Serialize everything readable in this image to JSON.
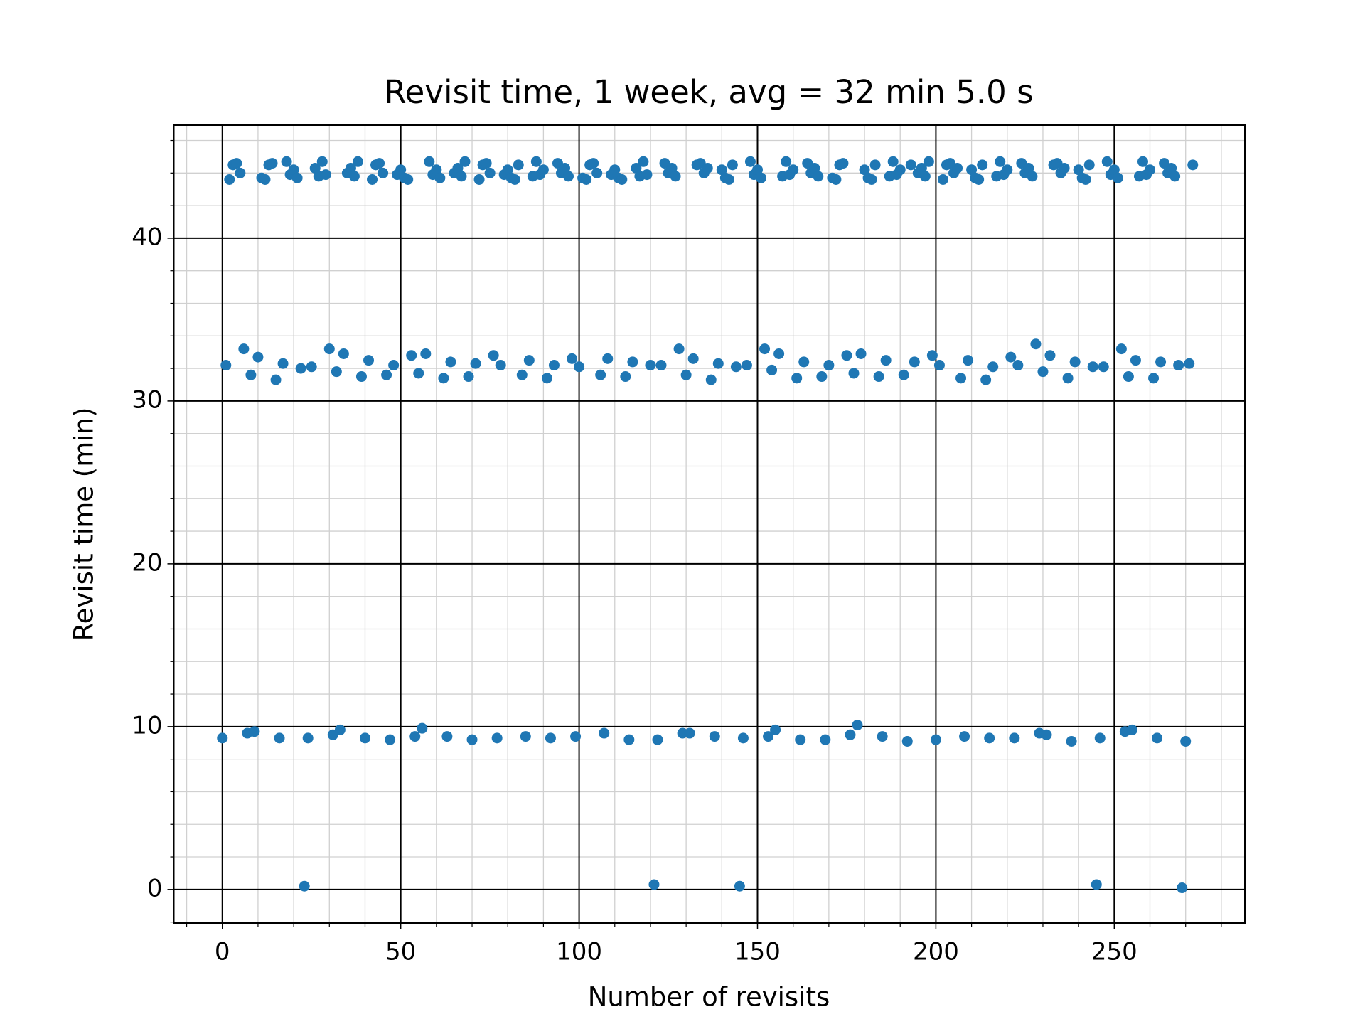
{
  "chart_data": {
    "type": "scatter",
    "title": "Revisit time, 1 week, avg = 32 min 5.0 s",
    "x_label": "Number of revisits",
    "y_label": "Revisit time (min)",
    "color": "#1f77b4",
    "grid": true,
    "xlim": [
      -13.6,
      286.6
    ],
    "ylim": [
      -2.06,
      46.94
    ],
    "xticks": [
      0,
      50,
      100,
      150,
      200,
      250
    ],
    "yticks": [
      0,
      10,
      20,
      30,
      40
    ],
    "xminorticks": [
      -10,
      10,
      20,
      30,
      40,
      60,
      70,
      80,
      90,
      110,
      120,
      130,
      140,
      160,
      170,
      180,
      190,
      210,
      220,
      230,
      240,
      260,
      270,
      280
    ],
    "yminorticks": [
      -2,
      2,
      4,
      6,
      8,
      12,
      14,
      16,
      18,
      22,
      24,
      26,
      28,
      32,
      34,
      36,
      38,
      42,
      44,
      46
    ],
    "x": [
      0,
      1,
      2,
      3,
      4,
      5,
      6,
      7,
      8,
      9,
      10,
      11,
      12,
      13,
      14,
      15,
      16,
      17,
      18,
      19,
      20,
      21,
      22,
      23,
      24,
      25,
      26,
      27,
      28,
      29,
      30,
      31,
      32,
      33,
      34,
      35,
      36,
      37,
      38,
      39,
      40,
      41,
      42,
      43,
      44,
      45,
      46,
      47,
      48,
      49,
      50,
      51,
      52,
      53,
      54,
      55,
      56,
      57,
      58,
      59,
      60,
      61,
      62,
      63,
      64,
      65,
      66,
      67,
      68,
      69,
      70,
      71,
      72,
      73,
      74,
      75,
      76,
      77,
      78,
      79,
      80,
      81,
      82,
      83,
      84,
      85,
      86,
      87,
      88,
      89,
      90,
      91,
      92,
      93,
      94,
      95,
      96,
      97,
      98,
      99,
      100,
      101,
      102,
      103,
      104,
      105,
      106,
      107,
      108,
      109,
      110,
      111,
      112,
      113,
      114,
      115,
      116,
      117,
      118,
      119,
      120,
      121,
      122,
      123,
      124,
      125,
      126,
      127,
      128,
      129,
      130,
      131,
      132,
      133,
      134,
      135,
      136,
      137,
      138,
      139,
      140,
      141,
      142,
      143,
      144,
      145,
      146,
      147,
      148,
      149,
      150,
      151,
      152,
      153,
      154,
      155,
      156,
      157,
      158,
      159,
      160,
      161,
      162,
      163,
      164,
      165,
      166,
      167,
      168,
      169,
      170,
      171,
      172,
      173,
      174,
      175,
      176,
      177,
      178,
      179,
      180,
      181,
      182,
      183,
      184,
      185,
      186,
      187,
      188,
      189,
      190,
      191,
      192,
      193,
      194,
      195,
      196,
      197,
      198,
      199,
      200,
      201,
      202,
      203,
      204,
      205,
      206,
      207,
      208,
      209,
      210,
      211,
      212,
      213,
      214,
      215,
      216,
      217,
      218,
      219,
      220,
      221,
      222,
      223,
      224,
      225,
      226,
      227,
      228,
      229,
      230,
      231,
      232,
      233,
      234,
      235,
      236,
      237,
      238,
      239,
      240,
      241,
      242,
      243,
      244,
      245,
      246,
      247,
      248,
      249,
      250,
      251,
      252,
      253,
      254,
      255,
      256,
      257,
      258,
      259,
      260,
      261,
      262,
      263,
      264,
      265,
      266,
      267,
      268,
      269,
      270,
      271,
      272
    ],
    "y": [
      9.3,
      32.2,
      43.6,
      44.5,
      44.6,
      44.0,
      33.2,
      9.6,
      31.6,
      9.7,
      32.7,
      43.7,
      43.6,
      44.5,
      44.6,
      31.3,
      9.3,
      32.3,
      44.7,
      43.9,
      44.2,
      43.7,
      32.0,
      0.2,
      9.3,
      32.1,
      44.3,
      43.8,
      44.7,
      43.9,
      33.2,
      9.5,
      31.8,
      9.8,
      32.9,
      44.0,
      44.3,
      43.8,
      44.7,
      31.5,
      9.3,
      32.5,
      43.6,
      44.5,
      44.6,
      44.0,
      31.6,
      9.2,
      32.2,
      43.9,
      44.2,
      43.7,
      43.6,
      32.8,
      9.4,
      31.7,
      9.9,
      32.9,
      44.7,
      43.9,
      44.2,
      43.7,
      31.4,
      9.4,
      32.4,
      44.0,
      44.3,
      43.8,
      44.7,
      31.5,
      9.2,
      32.3,
      43.6,
      44.5,
      44.6,
      44.0,
      32.8,
      9.3,
      32.2,
      43.9,
      44.2,
      43.7,
      43.6,
      44.5,
      31.6,
      9.4,
      32.5,
      43.8,
      44.7,
      43.9,
      44.2,
      31.4,
      9.3,
      32.2,
      44.6,
      44.0,
      44.3,
      43.8,
      32.6,
      9.4,
      32.1,
      43.7,
      43.6,
      44.5,
      44.6,
      44.0,
      31.6,
      9.6,
      32.6,
      43.9,
      44.2,
      43.7,
      43.6,
      31.5,
      9.2,
      32.4,
      44.3,
      43.8,
      44.7,
      43.9,
      32.2,
      0.3,
      9.2,
      32.2,
      44.6,
      44.0,
      44.3,
      43.8,
      33.2,
      9.6,
      31.6,
      9.6,
      32.6,
      44.5,
      44.6,
      44.0,
      44.3,
      31.3,
      9.4,
      32.3,
      44.2,
      43.7,
      43.6,
      44.5,
      32.1,
      0.2,
      9.3,
      32.2,
      44.7,
      43.9,
      44.2,
      43.7,
      33.2,
      9.4,
      31.9,
      9.8,
      32.9,
      43.8,
      44.7,
      43.9,
      44.2,
      31.4,
      9.2,
      32.4,
      44.6,
      44.0,
      44.3,
      43.8,
      31.5,
      9.2,
      32.2,
      43.7,
      43.6,
      44.5,
      44.6,
      32.8,
      9.5,
      31.7,
      10.1,
      32.9,
      44.2,
      43.7,
      43.6,
      44.5,
      31.5,
      9.4,
      32.5,
      43.8,
      44.7,
      43.9,
      44.2,
      31.6,
      9.1,
      44.5,
      32.4,
      44.0,
      44.3,
      43.8,
      44.7,
      32.8,
      9.2,
      32.2,
      43.6,
      44.5,
      44.6,
      44.0,
      44.3,
      31.4,
      9.4,
      32.5,
      44.2,
      43.7,
      43.6,
      44.5,
      31.3,
      9.3,
      32.1,
      43.8,
      44.7,
      43.9,
      44.2,
      32.7,
      9.3,
      32.2,
      44.6,
      44.0,
      44.3,
      43.8,
      33.5,
      9.6,
      31.8,
      9.5,
      32.8,
      44.5,
      44.6,
      44.0,
      44.3,
      31.4,
      9.1,
      32.4,
      44.2,
      43.7,
      43.6,
      44.5,
      32.1,
      0.3,
      9.3,
      32.1,
      44.7,
      43.9,
      44.2,
      43.7,
      33.2,
      9.7,
      31.5,
      9.8,
      32.5,
      43.8,
      44.7,
      43.9,
      44.2,
      31.4,
      9.3,
      32.4,
      44.6,
      44.0,
      44.3,
      43.8,
      32.2,
      0.1,
      9.1,
      32.3,
      44.5
    ]
  }
}
